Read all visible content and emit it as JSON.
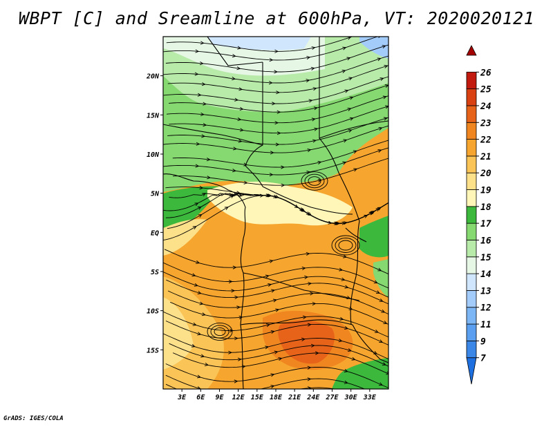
{
  "title": "WBPT [C] and Sreamline at 600hPa, VT: 2020020121",
  "footer": "GrADS: IGES/COLA",
  "map": {
    "lon_range": [
      0,
      36
    ],
    "lat_range": [
      -20,
      25
    ],
    "x_ticks": [
      "3E",
      "6E",
      "9E",
      "12E",
      "15E",
      "18E",
      "21E",
      "24E",
      "27E",
      "30E",
      "33E"
    ],
    "x_tick_values": [
      3,
      6,
      9,
      12,
      15,
      18,
      21,
      24,
      27,
      30,
      33
    ],
    "y_ticks": [
      "20N",
      "15N",
      "10N",
      "5N",
      "EQ",
      "5S",
      "10S",
      "15S"
    ],
    "y_tick_values": [
      20,
      15,
      10,
      5,
      0,
      -5,
      -10,
      -15
    ]
  },
  "colorbar": {
    "labels": [
      "7",
      "9",
      "11",
      "12",
      "13",
      "14",
      "15",
      "16",
      "17",
      "18",
      "19",
      "20",
      "21",
      "22",
      "23",
      "24",
      "25",
      "26"
    ],
    "colors": [
      "#1e6fe0",
      "#3a87e8",
      "#5a9ff0",
      "#7db6f5",
      "#a3ccfa",
      "#cfe6fc",
      "#e6f7e6",
      "#b8eaa9",
      "#86d970",
      "#3cb83c",
      "#fff6b8",
      "#fde08a",
      "#fbc456",
      "#f6a52e",
      "#f08620",
      "#e8631a",
      "#d94012",
      "#c21a0e",
      "#a30000"
    ],
    "colors_note": ""
  }
}
